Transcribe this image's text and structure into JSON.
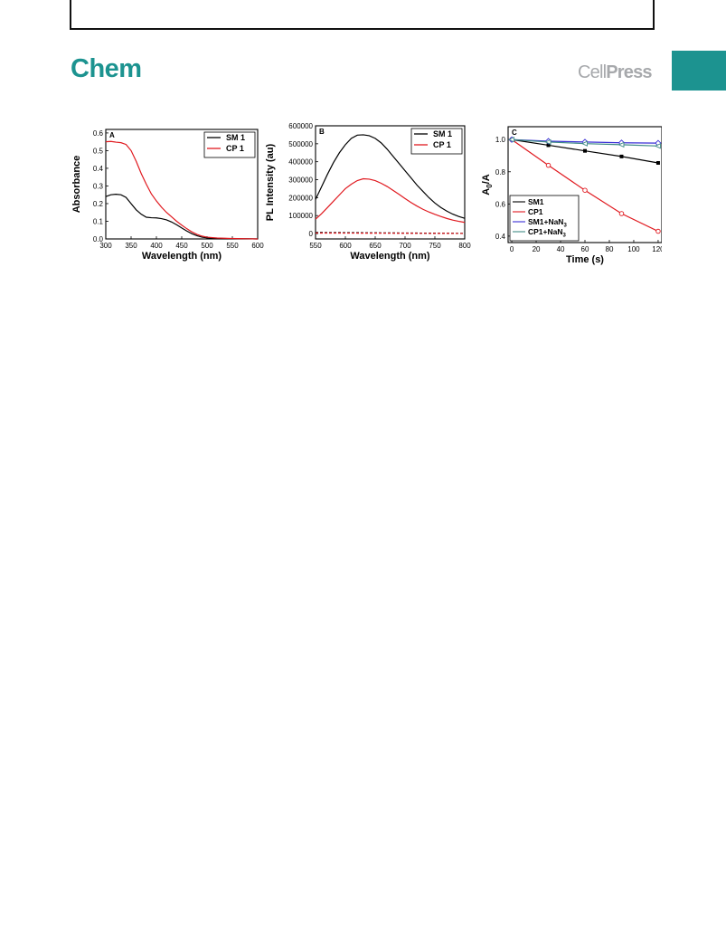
{
  "header": {
    "journal": "Chem",
    "publisher_a": "Cell",
    "publisher_b": "Press",
    "colors": {
      "journal": "#1c9390",
      "tab": "#1c9390",
      "publisher": "#a7a9ac"
    }
  },
  "chart_data": [
    {
      "panel": "A",
      "type": "line",
      "xlabel": "Wavelength (nm)",
      "ylabel": "Absorbance",
      "xlim": [
        300,
        600
      ],
      "ylim": [
        0.0,
        0.62
      ],
      "xticks": [
        300,
        350,
        400,
        450,
        500,
        550,
        600
      ],
      "yticks": [
        0.0,
        0.1,
        0.2,
        0.3,
        0.4,
        0.5,
        0.6
      ],
      "xtick_labels": [
        "300",
        "350",
        "400",
        "450",
        "500",
        "550",
        "600"
      ],
      "ytick_labels": [
        "0.0",
        "0.1",
        "0.2",
        "0.3",
        "0.4",
        "0.5",
        "0.6"
      ],
      "legend_position": "top-right",
      "series": [
        {
          "name": "SM 1",
          "color": "#000000",
          "style": "solid",
          "x": [
            300,
            310,
            320,
            330,
            340,
            350,
            360,
            370,
            380,
            390,
            400,
            410,
            420,
            430,
            440,
            450,
            460,
            470,
            480,
            490,
            500,
            520,
            540,
            560,
            580,
            600
          ],
          "y": [
            0.24,
            0.25,
            0.253,
            0.25,
            0.235,
            0.2,
            0.165,
            0.14,
            0.123,
            0.12,
            0.119,
            0.115,
            0.108,
            0.096,
            0.08,
            0.062,
            0.045,
            0.03,
            0.018,
            0.01,
            0.006,
            0.003,
            0.002,
            0.001,
            0.001,
            0.0
          ]
        },
        {
          "name": "CP 1",
          "color": "#e0191f",
          "style": "solid",
          "x": [
            300,
            310,
            320,
            330,
            340,
            350,
            360,
            370,
            380,
            390,
            400,
            410,
            420,
            430,
            440,
            450,
            460,
            470,
            480,
            490,
            500,
            520,
            540,
            560,
            580,
            600
          ],
          "y": [
            0.55,
            0.552,
            0.548,
            0.545,
            0.535,
            0.5,
            0.44,
            0.37,
            0.31,
            0.255,
            0.215,
            0.18,
            0.15,
            0.125,
            0.1,
            0.078,
            0.058,
            0.04,
            0.026,
            0.016,
            0.01,
            0.005,
            0.003,
            0.002,
            0.001,
            0.0
          ]
        }
      ]
    },
    {
      "panel": "B",
      "type": "line",
      "xlabel": "Wavelength (nm)",
      "ylabel": "PL Intensity (au)",
      "xlim": [
        550,
        800
      ],
      "ylim": [
        -30000,
        600000
      ],
      "xticks": [
        550,
        600,
        650,
        700,
        750,
        800
      ],
      "yticks": [
        0,
        100000,
        200000,
        300000,
        400000,
        500000,
        600000
      ],
      "xtick_labels": [
        "550",
        "600",
        "650",
        "700",
        "750",
        "800"
      ],
      "ytick_labels": [
        "0",
        "100000",
        "200000",
        "300000",
        "400000",
        "500000",
        "600000"
      ],
      "legend_position": "top-right",
      "series": [
        {
          "name": "SM 1",
          "color": "#000000",
          "style": "solid",
          "x": [
            550,
            560,
            570,
            580,
            590,
            600,
            610,
            620,
            630,
            640,
            650,
            660,
            670,
            680,
            690,
            700,
            710,
            720,
            730,
            740,
            750,
            760,
            770,
            780,
            790,
            800
          ],
          "y": [
            190000,
            260000,
            330000,
            395000,
            450000,
            495000,
            530000,
            548000,
            550000,
            545000,
            530000,
            505000,
            470000,
            430000,
            390000,
            350000,
            310000,
            270000,
            235000,
            200000,
            170000,
            145000,
            125000,
            108000,
            95000,
            85000
          ]
        },
        {
          "name": "CP 1",
          "color": "#e0191f",
          "style": "solid",
          "x": [
            550,
            560,
            570,
            580,
            590,
            600,
            610,
            620,
            630,
            640,
            650,
            660,
            670,
            680,
            690,
            700,
            710,
            720,
            730,
            740,
            750,
            760,
            770,
            780,
            790,
            800
          ],
          "y": [
            80000,
            110000,
            145000,
            180000,
            215000,
            250000,
            275000,
            295000,
            305000,
            303000,
            295000,
            280000,
            262000,
            240000,
            218000,
            195000,
            173000,
            153000,
            135000,
            120000,
            107000,
            95000,
            84000,
            75000,
            68000,
            62000
          ]
        },
        {
          "name": "",
          "color": "#000000",
          "style": "dashed",
          "x": [
            550,
            600,
            650,
            700,
            750,
            800
          ],
          "y": [
            6000,
            5000,
            4000,
            3000,
            2000,
            1000
          ]
        },
        {
          "name": "",
          "color": "#e0191f",
          "style": "dashed",
          "x": [
            550,
            600,
            650,
            700,
            750,
            800
          ],
          "y": [
            3000,
            2500,
            2000,
            1500,
            1000,
            500
          ]
        }
      ]
    },
    {
      "panel": "C",
      "type": "line",
      "xlabel": "Time (s)",
      "ylabel_main": "A",
      "ylabel_sub": "0",
      "ylabel_tail": "/A",
      "xlim": [
        -3,
        123
      ],
      "ylim": [
        0.36,
        1.08
      ],
      "xticks": [
        0,
        20,
        40,
        60,
        80,
        100,
        120
      ],
      "yticks": [
        0.4,
        0.6,
        0.8,
        1.0
      ],
      "xtick_labels": [
        "0",
        "20",
        "40",
        "60",
        "80",
        "100",
        "120"
      ],
      "ytick_labels": [
        "0.4",
        "0.6",
        "0.8",
        "1.0"
      ],
      "legend_position": "bottom-left",
      "series": [
        {
          "name": "SM1",
          "name_sub": "",
          "color": "#000000",
          "marker": "filled-square",
          "x": [
            0,
            30,
            60,
            90,
            120
          ],
          "y": [
            1.0,
            0.965,
            0.93,
            0.895,
            0.855
          ]
        },
        {
          "name": "CP1",
          "name_sub": "",
          "color": "#e0191f",
          "marker": "open-circle",
          "x": [
            0,
            30,
            60,
            90,
            120
          ],
          "y": [
            1.0,
            0.84,
            0.685,
            0.54,
            0.43
          ]
        },
        {
          "name": "SM1+NaN",
          "name_sub": "3",
          "color": "#3a2fd6",
          "marker": "open-diamond",
          "x": [
            0,
            30,
            60,
            90,
            120
          ],
          "y": [
            1.0,
            0.99,
            0.985,
            0.98,
            0.978
          ]
        },
        {
          "name": "CP1+NaN",
          "name_sub": "3",
          "color": "#3f8a86",
          "marker": "open-triangle",
          "x": [
            0,
            30,
            60,
            90,
            120
          ],
          "y": [
            1.0,
            0.985,
            0.975,
            0.968,
            0.96
          ]
        }
      ]
    }
  ]
}
